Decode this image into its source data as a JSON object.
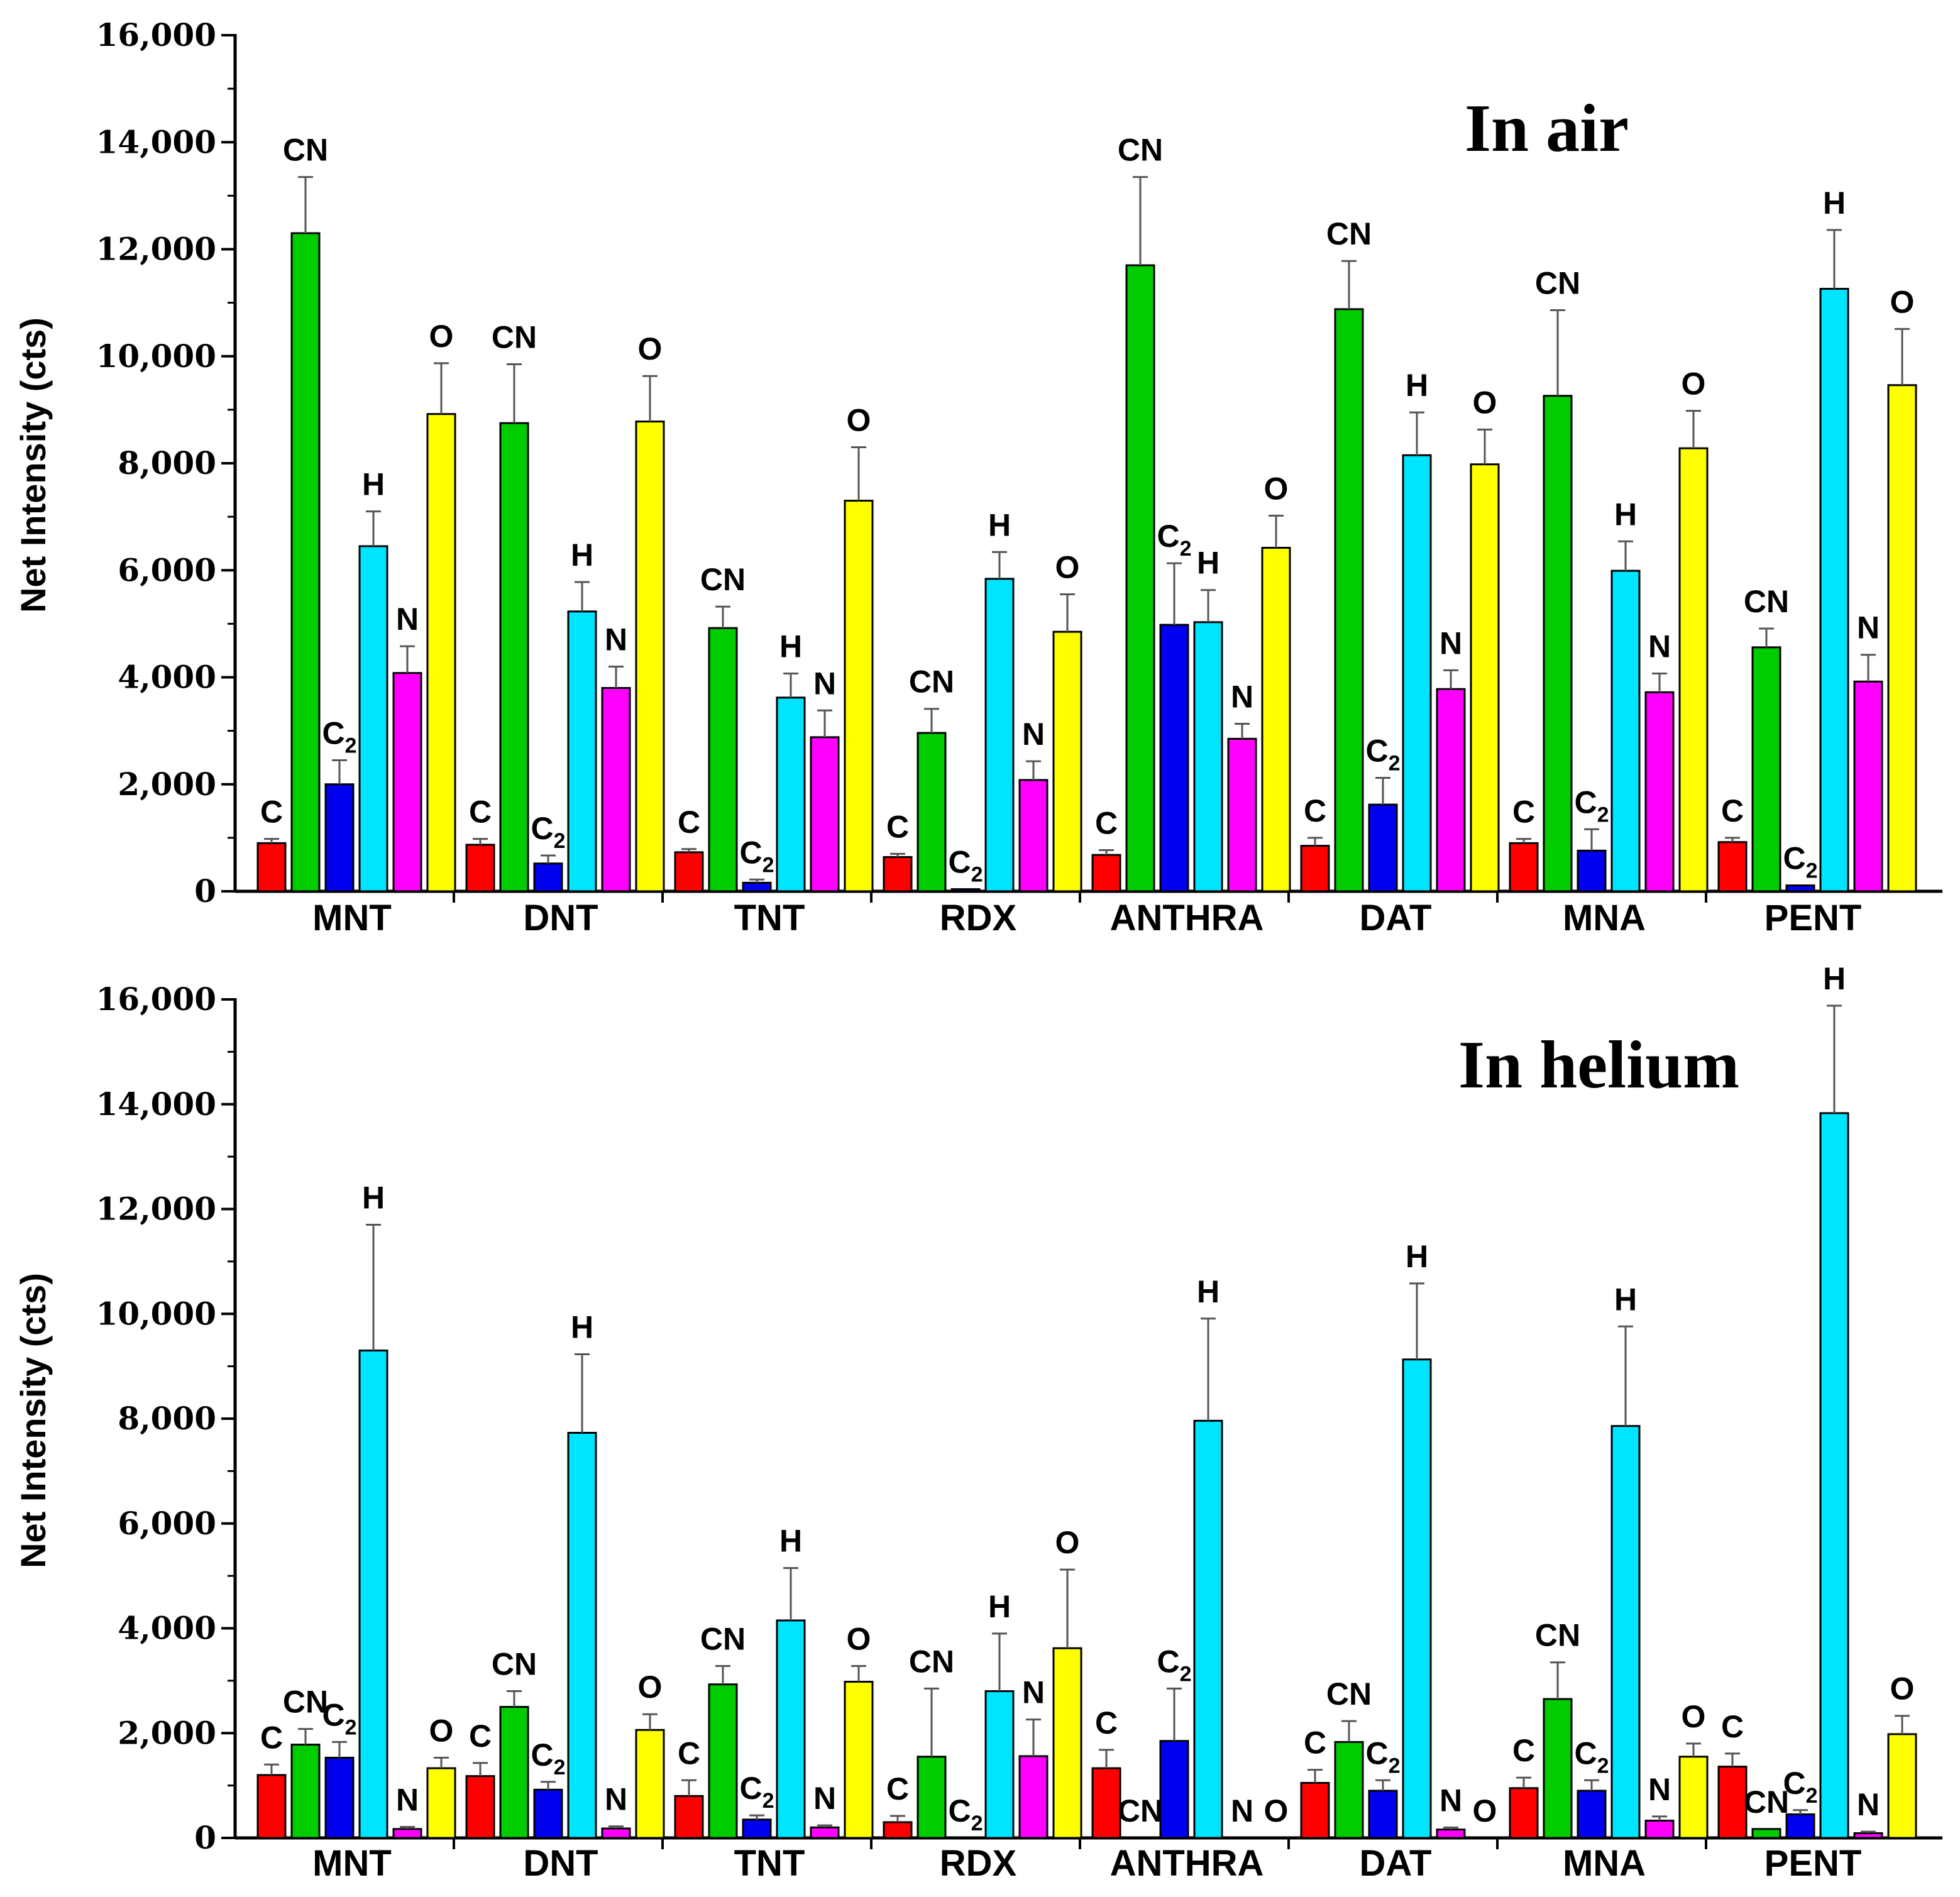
{
  "chart_data": [
    {
      "type": "bar",
      "title": "In air",
      "xlabel": "",
      "ylabel": "Net Intensity (cts)",
      "ylim": [
        0,
        16000
      ],
      "yticks": [
        "0",
        "2,000",
        "4,000",
        "6,000",
        "8,000",
        "10,000",
        "12,000",
        "14,000",
        "16,000"
      ],
      "categories": [
        "MNT",
        "DNT",
        "TNT",
        "RDX",
        "ANTHRA",
        "DAT",
        "MNA",
        "PENT"
      ],
      "series": [
        {
          "name": "C",
          "label": "C",
          "color": "#ff0000",
          "values": [
            900,
            870,
            730,
            640,
            680,
            850,
            900,
            920
          ],
          "errors": [
            80,
            110,
            60,
            60,
            90,
            150,
            80,
            80
          ],
          "labels": [
            "C",
            "C",
            "C",
            "C",
            "C",
            "C",
            "C",
            "C"
          ]
        },
        {
          "name": "CN",
          "label": "CN",
          "color": "#00cc00",
          "values": [
            12300,
            8750,
            4920,
            2960,
            11700,
            10880,
            9260,
            4560
          ],
          "errors": [
            1050,
            1100,
            400,
            450,
            1650,
            900,
            1600,
            350
          ],
          "labels": [
            "CN",
            "CN",
            "CN",
            "CN",
            "CN",
            "CN",
            "CN",
            "CN"
          ]
        },
        {
          "name": "C2",
          "label": "C",
          "sub": "2",
          "color": "#0000ee",
          "values": [
            2000,
            520,
            160,
            40,
            4980,
            1620,
            760,
            110
          ],
          "errors": [
            450,
            150,
            60,
            0,
            1150,
            500,
            400,
            0
          ],
          "labels": [
            "C",
            "C",
            "C",
            "C",
            "C",
            "C",
            "C",
            "C"
          ]
        },
        {
          "name": "H",
          "label": "H",
          "color": "#00e5ff",
          "values": [
            6450,
            5230,
            3620,
            5840,
            5030,
            8150,
            5990,
            11260
          ],
          "errors": [
            650,
            550,
            450,
            500,
            600,
            800,
            550,
            1100
          ],
          "labels": [
            "H",
            "H",
            "H",
            "H",
            "H",
            "H",
            "H",
            "H"
          ]
        },
        {
          "name": "N",
          "label": "N",
          "color": "#ff00ff",
          "values": [
            4080,
            3800,
            2880,
            2080,
            2850,
            3780,
            3720,
            3920
          ],
          "errors": [
            500,
            400,
            500,
            350,
            280,
            350,
            350,
            500
          ],
          "labels": [
            "N",
            "N",
            "N",
            "N",
            "N",
            "N",
            "N",
            "N"
          ]
        },
        {
          "name": "O",
          "label": "O",
          "color": "#ffff00",
          "values": [
            8920,
            8780,
            7300,
            4850,
            6420,
            7980,
            8280,
            9460
          ],
          "errors": [
            950,
            850,
            1000,
            700,
            600,
            650,
            700,
            1050
          ],
          "labels": [
            "O",
            "O",
            "O",
            "O",
            "O",
            "O",
            "O",
            "O"
          ]
        }
      ]
    },
    {
      "type": "bar",
      "title": "In  helium",
      "xlabel": "",
      "ylabel": "Net Intensity (cts)",
      "ylim": [
        0,
        16000
      ],
      "yticks": [
        "0",
        "2,000",
        "4,000",
        "6,000",
        "8,000",
        "10,000",
        "12,000",
        "14,000",
        "16,000"
      ],
      "categories": [
        "MNT",
        "DNT",
        "TNT",
        "RDX",
        "ANTHRA",
        "DAT",
        "MNA",
        "PENT"
      ],
      "series": [
        {
          "name": "C",
          "label": "C",
          "color": "#ff0000",
          "values": [
            1200,
            1180,
            800,
            300,
            1330,
            1050,
            950,
            1360
          ],
          "errors": [
            200,
            250,
            300,
            120,
            350,
            250,
            200,
            250
          ],
          "labels": [
            "C",
            "C",
            "C",
            "C",
            "C",
            "C",
            "C",
            "C"
          ]
        },
        {
          "name": "CN",
          "label": "CN",
          "color": "#00cc00",
          "values": [
            1780,
            2500,
            2930,
            1550,
            0,
            1830,
            2650,
            170
          ],
          "errors": [
            300,
            300,
            350,
            1300,
            0,
            400,
            700,
            0
          ],
          "labels": [
            "CN",
            "CN",
            "CN",
            "CN",
            "CN",
            "CN",
            "CN",
            "CN"
          ]
        },
        {
          "name": "C2",
          "label": "C",
          "sub": "2",
          "color": "#0000ee",
          "values": [
            1530,
            920,
            350,
            0,
            1850,
            900,
            900,
            450
          ],
          "errors": [
            300,
            150,
            80,
            0,
            1000,
            200,
            200,
            80
          ],
          "labels": [
            "C",
            "C",
            "C",
            "C",
            "C",
            "C",
            "C",
            "C"
          ]
        },
        {
          "name": "H",
          "label": "H",
          "color": "#00e5ff",
          "values": [
            9300,
            7730,
            4150,
            2800,
            7960,
            9130,
            7860,
            13830
          ],
          "errors": [
            2400,
            1500,
            1000,
            1100,
            1950,
            1450,
            1900,
            2050
          ],
          "labels": [
            "H",
            "H",
            "H",
            "H",
            "H",
            "H",
            "H",
            "H"
          ]
        },
        {
          "name": "N",
          "label": "N",
          "color": "#ff00ff",
          "values": [
            170,
            180,
            200,
            1560,
            0,
            160,
            330,
            90
          ],
          "errors": [
            40,
            40,
            40,
            700,
            0,
            40,
            80,
            30
          ],
          "labels": [
            "N",
            "N",
            "N",
            "N",
            "N",
            "N",
            "N",
            "N"
          ]
        },
        {
          "name": "O",
          "label": "O",
          "color": "#ffff00",
          "values": [
            1330,
            2060,
            2980,
            3620,
            0,
            0,
            1550,
            1980
          ],
          "errors": [
            200,
            300,
            300,
            1500,
            0,
            0,
            250,
            350
          ],
          "labels": [
            "O",
            "O",
            "O",
            "O",
            "O",
            "O",
            "O",
            "O"
          ]
        }
      ]
    }
  ]
}
